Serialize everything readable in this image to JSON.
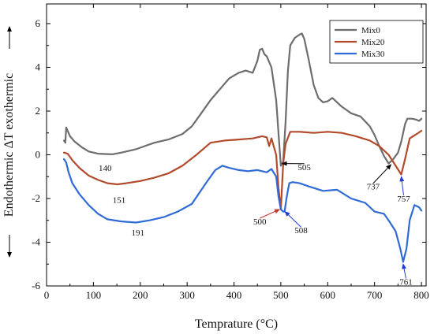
{
  "chart_data": {
    "type": "line",
    "title": "",
    "xlabel": "Temprature (°C)",
    "ylabel": "Endothermic ΔT exothermic",
    "xlim": [
      0,
      810
    ],
    "ylim": [
      -6,
      6.9
    ],
    "xticks": [
      0,
      100,
      200,
      300,
      400,
      500,
      600,
      700,
      800
    ],
    "yticks": [
      -6,
      -4,
      -2,
      0,
      2,
      4,
      6
    ],
    "grid": false,
    "legend_position": "top-right",
    "series": [
      {
        "name": "Mix0",
        "color": "#6d6d6d",
        "x": [
          37,
          40,
          42,
          45,
          50,
          60,
          75,
          90,
          110,
          140,
          160,
          190,
          210,
          230,
          260,
          290,
          310,
          330,
          350,
          370,
          390,
          410,
          425,
          440,
          450,
          455,
          460,
          465,
          470,
          480,
          490,
          495,
          500,
          505,
          510,
          515,
          520,
          530,
          540,
          545,
          550,
          560,
          570,
          580,
          590,
          600,
          610,
          620,
          630,
          650,
          670,
          690,
          700,
          710,
          720,
          730,
          740,
          750,
          757,
          765,
          770,
          780,
          790,
          795,
          800
        ],
        "y": [
          0.65,
          0.55,
          1.25,
          1.1,
          0.85,
          0.6,
          0.35,
          0.15,
          0.05,
          0.02,
          0.1,
          0.25,
          0.4,
          0.55,
          0.7,
          0.95,
          1.3,
          1.9,
          2.5,
          3.0,
          3.5,
          3.75,
          3.85,
          3.75,
          4.3,
          4.8,
          4.85,
          4.6,
          4.5,
          4.0,
          2.5,
          1.0,
          -0.5,
          -0.3,
          1.5,
          3.8,
          5.0,
          5.35,
          5.5,
          5.55,
          5.3,
          4.3,
          3.2,
          2.6,
          2.4,
          2.45,
          2.6,
          2.4,
          2.2,
          1.9,
          1.75,
          1.3,
          0.9,
          0.4,
          -0.05,
          -0.4,
          -0.2,
          0.1,
          0.6,
          1.4,
          1.65,
          1.65,
          1.6,
          1.55,
          1.65
        ]
      },
      {
        "name": "Mix20",
        "color": "#b24a2c",
        "x": [
          37,
          45,
          55,
          70,
          90,
          110,
          130,
          151,
          170,
          200,
          230,
          260,
          290,
          320,
          350,
          380,
          410,
          440,
          460,
          470,
          475,
          480,
          490,
          495,
          500,
          505,
          510,
          520,
          540,
          570,
          600,
          630,
          660,
          690,
          710,
          730,
          745,
          757,
          765,
          775,
          790,
          800
        ],
        "y": [
          0.1,
          0.05,
          -0.25,
          -0.6,
          -0.95,
          -1.15,
          -1.3,
          -1.35,
          -1.3,
          -1.2,
          -1.05,
          -0.85,
          -0.5,
          0.0,
          0.55,
          0.65,
          0.7,
          0.75,
          0.85,
          0.8,
          0.4,
          0.75,
          0.0,
          -1.5,
          -2.5,
          -0.4,
          0.5,
          1.05,
          1.05,
          1.0,
          1.05,
          1.0,
          0.85,
          0.65,
          0.4,
          0.0,
          -0.5,
          -0.9,
          -0.2,
          0.75,
          0.95,
          1.1
        ]
      },
      {
        "name": "Mix30",
        "color": "#2f6ad6",
        "x": [
          37,
          42,
          47,
          55,
          70,
          90,
          110,
          130,
          160,
          191,
          220,
          250,
          280,
          310,
          340,
          360,
          375,
          390,
          410,
          430,
          450,
          470,
          480,
          490,
          495,
          500,
          505,
          508,
          512,
          518,
          525,
          540,
          560,
          590,
          620,
          650,
          680,
          700,
          720,
          730,
          745,
          755,
          761,
          768,
          775,
          785,
          795,
          800
        ],
        "y": [
          -0.2,
          -0.35,
          -0.8,
          -1.3,
          -1.8,
          -2.3,
          -2.7,
          -2.95,
          -3.05,
          -3.1,
          -3.0,
          -2.85,
          -2.6,
          -2.25,
          -1.3,
          -0.7,
          -0.5,
          -0.6,
          -0.7,
          -0.75,
          -0.7,
          -0.8,
          -0.65,
          -1.0,
          -1.9,
          -2.5,
          -2.6,
          -2.6,
          -2.0,
          -1.3,
          -1.25,
          -1.3,
          -1.45,
          -1.65,
          -1.6,
          -2.0,
          -2.2,
          -2.6,
          -2.7,
          -3.0,
          -3.5,
          -4.3,
          -4.9,
          -4.3,
          -3.0,
          -2.3,
          -2.4,
          -2.55
        ]
      }
    ],
    "annotations": [
      {
        "text": "140",
        "x": 125,
        "y": -0.6,
        "target_x": 125,
        "target_y": -0.6,
        "arrow": false,
        "arrow_color": "#000"
      },
      {
        "text": "151",
        "x": 155,
        "y": -2.05,
        "target_x": 155,
        "target_y": -2.05,
        "arrow": false,
        "arrow_color": "#000"
      },
      {
        "text": "191",
        "x": 195,
        "y": -3.55,
        "target_x": 195,
        "target_y": -3.55,
        "arrow": false,
        "arrow_color": "#000"
      },
      {
        "text": "505",
        "x": 550,
        "y": -0.55,
        "target_x": 503,
        "target_y": -0.4,
        "arrow": true,
        "arrow_color": "#000"
      },
      {
        "text": "500",
        "x": 455,
        "y": -3.05,
        "target_x": 497,
        "target_y": -2.5,
        "arrow": true,
        "arrow_color": "#c0392b"
      },
      {
        "text": "508",
        "x": 543,
        "y": -3.45,
        "target_x": 509,
        "target_y": -2.6,
        "arrow": true,
        "arrow_color": "#1f3bd1"
      },
      {
        "text": "737",
        "x": 697,
        "y": -1.45,
        "target_x": 735,
        "target_y": -0.45,
        "arrow": true,
        "arrow_color": "#000"
      },
      {
        "text": "757",
        "x": 762,
        "y": -2.0,
        "target_x": 757,
        "target_y": -1.0,
        "arrow": true,
        "arrow_color": "#1f3bd1"
      },
      {
        "text": "761",
        "x": 767,
        "y": -5.8,
        "target_x": 761,
        "target_y": -5.0,
        "arrow": true,
        "arrow_color": "#1f3bd1"
      }
    ]
  }
}
